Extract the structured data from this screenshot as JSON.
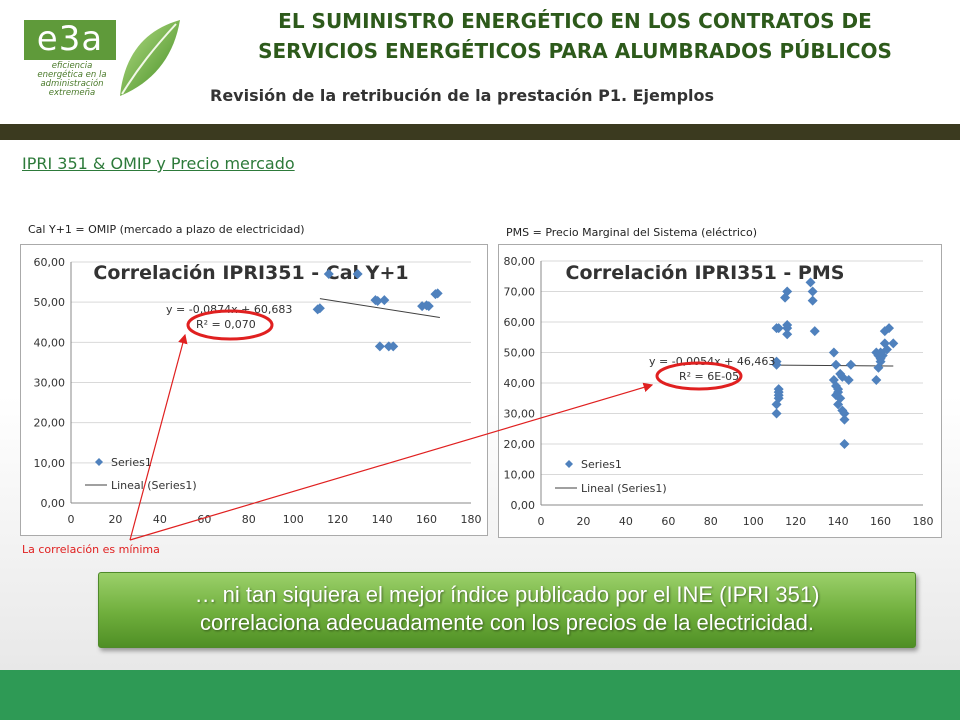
{
  "logo": {
    "brand": "e3a",
    "tagline_lines": [
      "eficiencia",
      "energética en la",
      "administración",
      "extremeña"
    ]
  },
  "header": {
    "title_line1": "EL SUMINISTRO ENERGÉTICO EN LOS CONTRATOS DE",
    "title_line2": "SERVICIOS ENERGÉTICOS PARA ALUMBRADOS PÚBLICOS",
    "subtitle": "Revisión de la retribución de la prestación P1. Ejemplos"
  },
  "section_link": "IPRI 351 & OMIP y Precio mercado",
  "notes": {
    "left": "Cal Y+1 = OMIP (mercado a plazo de electricidad)",
    "right": "PMS = Precio Marginal del Sistema (eléctrico)",
    "conclusion": "La correlación es mínima"
  },
  "banner": {
    "line1": "… ni tan siquiera el mejor índice publicado por el INE (IPRI 351)",
    "line2": "correlaciona adecuadamente con los precios de la electricidad."
  },
  "colors": {
    "title": "#2d5a1b",
    "band": "#3b3a1f",
    "marker": "#4f81bd",
    "highlight_circle": "#e02020",
    "footer": "#2e9a55"
  },
  "chart_data": [
    {
      "type": "scatter",
      "title": "Correlación IPRI351 - Cal Y+1",
      "xlim": [
        0,
        180
      ],
      "ylim": [
        0,
        60
      ],
      "xticks": [
        "0",
        "20",
        "40",
        "60",
        "80",
        "100",
        "120",
        "140",
        "160",
        "180"
      ],
      "yticks": [
        "0,00",
        "10,00",
        "20,00",
        "30,00",
        "40,00",
        "50,00",
        "60,00"
      ],
      "equation": "y = -0,0874x + 60,683",
      "r2": "R² = 0,070",
      "trend": {
        "slope": -0.0874,
        "intercept": 60.683,
        "x_range": [
          112,
          166
        ]
      },
      "legend": [
        "Series1",
        "Lineal (Series1)"
      ],
      "series": [
        {
          "name": "Series1",
          "x": [
            111,
            112,
            116,
            129,
            137,
            138,
            141,
            139,
            143,
            145,
            158,
            160,
            161,
            164,
            165
          ],
          "y": [
            48.2,
            48.5,
            57,
            57,
            50.5,
            50.3,
            50.5,
            39,
            39,
            39,
            49,
            49.2,
            49,
            52,
            52.2
          ]
        }
      ]
    },
    {
      "type": "scatter",
      "title": "Correlación IPRI351 - PMS",
      "xlim": [
        0,
        180
      ],
      "ylim": [
        0,
        80
      ],
      "xticks": [
        "0",
        "20",
        "40",
        "60",
        "80",
        "100",
        "120",
        "140",
        "160",
        "180"
      ],
      "yticks": [
        "0,00",
        "10,00",
        "20,00",
        "30,00",
        "40,00",
        "50,00",
        "60,00",
        "70,00",
        "80,00"
      ],
      "equation": "y = -0,0054x + 46,463",
      "r2": "R² = 6E-05",
      "trend": {
        "slope": -0.0054,
        "intercept": 46.463,
        "x_range": [
          112,
          166
        ]
      },
      "legend": [
        "Series1",
        "Lineal (Series1)"
      ],
      "series": [
        {
          "name": "Series1",
          "x": [
            111,
            111,
            112,
            112,
            112,
            112,
            111,
            111,
            112,
            111,
            116,
            116,
            116,
            115,
            116,
            127,
            128,
            128,
            129,
            138,
            139,
            138,
            139,
            140,
            140,
            139,
            141,
            140,
            142,
            143,
            143,
            142,
            141,
            145,
            146,
            143,
            158,
            159,
            160,
            160,
            159,
            158,
            161,
            160,
            162,
            163,
            162,
            164,
            166
          ],
          "y": [
            30,
            33,
            35,
            36,
            37,
            38,
            46,
            47,
            58,
            58,
            56,
            58,
            59,
            68,
            70,
            73,
            70,
            67,
            57,
            50,
            46,
            41,
            39,
            38,
            37,
            36,
            35,
            33,
            31,
            30,
            28,
            42,
            43,
            41,
            46,
            20,
            41,
            45,
            47,
            48,
            49,
            50,
            49,
            50,
            53,
            51,
            57,
            58,
            53
          ]
        }
      ]
    }
  ]
}
